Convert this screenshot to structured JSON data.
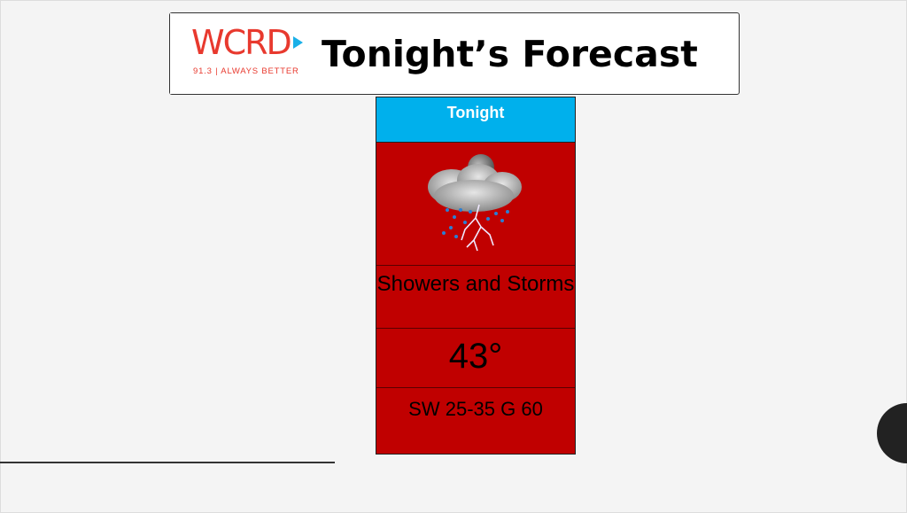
{
  "header": {
    "logo": {
      "name": "WCRD",
      "tagline": "91.3 | ALWAYS BETTER"
    },
    "title": "Tonight’s Forecast"
  },
  "forecast": {
    "period": "Tonight",
    "icon": "night-thunderstorm-icon",
    "condition": "Showers and Storms",
    "temperature": "43°",
    "wind": "SW 25-35 G 60"
  },
  "colors": {
    "header_bg": "#00b0ec",
    "cell_bg": "#c00000",
    "logo": "#e8392e"
  }
}
